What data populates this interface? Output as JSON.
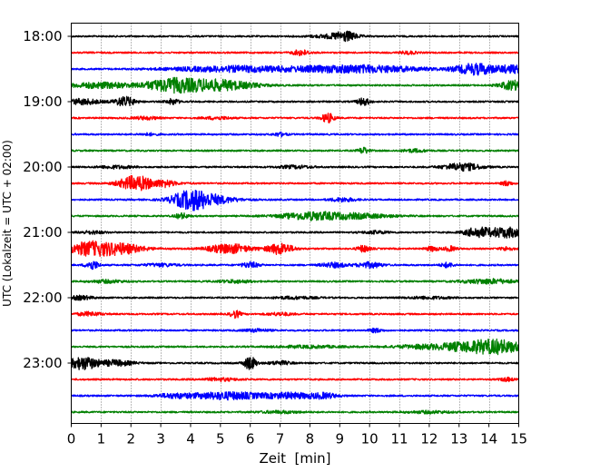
{
  "chart_data": {
    "type": "line",
    "title": "",
    "xlabel": "Zeit  [min]",
    "ylabel": "UTC (Lokalzeit = UTC + 02:00)",
    "xlim": [
      0,
      15
    ],
    "x_ticks": [
      0,
      1,
      2,
      3,
      4,
      5,
      6,
      7,
      8,
      9,
      10,
      11,
      12,
      13,
      14,
      15
    ],
    "y_tick_labels": [
      "18:00",
      "19:00",
      "20:00",
      "21:00",
      "22:00",
      "23:00"
    ],
    "trace_interval_minutes": 15,
    "start_time": "18:00",
    "grid": "vertical dotted at each minute",
    "legend": "none",
    "colors": [
      "#000000",
      "#ff0000",
      "#0000ff",
      "#008000"
    ],
    "series": [
      {
        "start": "18:00",
        "bursts": [
          {
            "t": 9.2,
            "amp": 4,
            "w": 0.25
          },
          {
            "t": 8.8,
            "amp": 2,
            "w": 0.5
          }
        ]
      },
      {
        "start": "18:15",
        "bursts": [
          {
            "t": 7.7,
            "amp": 3,
            "w": 0.2
          },
          {
            "t": 11.3,
            "amp": 1.5,
            "w": 0.2
          }
        ]
      },
      {
        "start": "18:30",
        "bursts": [
          {
            "t": 13.6,
            "amp": 6,
            "w": 0.5
          },
          {
            "t": 9.6,
            "amp": 4,
            "w": 1.5
          },
          {
            "t": 5.5,
            "amp": 3,
            "w": 1.5
          },
          {
            "t": 14.8,
            "amp": 4,
            "w": 0.3
          }
        ]
      },
      {
        "start": "18:45",
        "bursts": [
          {
            "t": 3.3,
            "amp": 6,
            "w": 0.6
          },
          {
            "t": 4.8,
            "amp": 6,
            "w": 0.9
          },
          {
            "t": 14.8,
            "amp": 5,
            "w": 0.3
          },
          {
            "t": 1.0,
            "amp": 3,
            "w": 0.8
          }
        ]
      },
      {
        "start": "19:00",
        "bursts": [
          {
            "t": 1.8,
            "amp": 5,
            "w": 0.25
          },
          {
            "t": 0.4,
            "amp": 3,
            "w": 0.4
          },
          {
            "t": 9.8,
            "amp": 4,
            "w": 0.15
          },
          {
            "t": 3.4,
            "amp": 3,
            "w": 0.15
          }
        ]
      },
      {
        "start": "19:15",
        "bursts": [
          {
            "t": 8.6,
            "amp": 5,
            "w": 0.15
          },
          {
            "t": 2.5,
            "amp": 1.5,
            "w": 0.3
          },
          {
            "t": 4.9,
            "amp": 1.5,
            "w": 0.3
          }
        ]
      },
      {
        "start": "19:30",
        "bursts": [
          {
            "t": 7.0,
            "amp": 2,
            "w": 0.15
          },
          {
            "t": 2.6,
            "amp": 1.2,
            "w": 0.2
          }
        ]
      },
      {
        "start": "19:45",
        "bursts": [
          {
            "t": 9.8,
            "amp": 3.5,
            "w": 0.12
          },
          {
            "t": 11.5,
            "amp": 1.5,
            "w": 0.3
          }
        ]
      },
      {
        "start": "20:00",
        "bursts": [
          {
            "t": 13.1,
            "amp": 4,
            "w": 0.45
          },
          {
            "t": 7.5,
            "amp": 1.5,
            "w": 0.4
          },
          {
            "t": 1.5,
            "amp": 1.5,
            "w": 0.4
          }
        ]
      },
      {
        "start": "20:15",
        "bursts": [
          {
            "t": 2.1,
            "amp": 6,
            "w": 0.35
          },
          {
            "t": 2.6,
            "amp": 3,
            "w": 0.6
          },
          {
            "t": 14.6,
            "amp": 2.5,
            "w": 0.12
          },
          {
            "t": 3.2,
            "amp": 2,
            "w": 0.15
          }
        ]
      },
      {
        "start": "20:30",
        "bursts": [
          {
            "t": 4.0,
            "amp": 9,
            "w": 0.45
          },
          {
            "t": 4.7,
            "amp": 4,
            "w": 0.6
          },
          {
            "t": 9.1,
            "amp": 2,
            "w": 0.3
          }
        ]
      },
      {
        "start": "20:45",
        "bursts": [
          {
            "t": 8.0,
            "amp": 4,
            "w": 0.7
          },
          {
            "t": 9.6,
            "amp": 2.5,
            "w": 0.8
          },
          {
            "t": 3.7,
            "amp": 3,
            "w": 0.15
          }
        ]
      },
      {
        "start": "21:00",
        "bursts": [
          {
            "t": 13.6,
            "amp": 5,
            "w": 0.3
          },
          {
            "t": 14.3,
            "amp": 4,
            "w": 0.3
          },
          {
            "t": 14.8,
            "amp": 4,
            "w": 0.25
          },
          {
            "t": 10.2,
            "amp": 1.5,
            "w": 0.3
          },
          {
            "t": 0.7,
            "amp": 1.5,
            "w": 0.3
          }
        ]
      },
      {
        "start": "21:15",
        "bursts": [
          {
            "t": 0.6,
            "amp": 7,
            "w": 0.55
          },
          {
            "t": 1.7,
            "amp": 5,
            "w": 0.55
          },
          {
            "t": 5.3,
            "amp": 5,
            "w": 0.5
          },
          {
            "t": 7.0,
            "amp": 6,
            "w": 0.3
          },
          {
            "t": 9.8,
            "amp": 3.5,
            "w": 0.15
          },
          {
            "t": 12.1,
            "amp": 2.5,
            "w": 0.15
          },
          {
            "t": 12.7,
            "amp": 2.5,
            "w": 0.15
          },
          {
            "t": 14.6,
            "amp": 2,
            "w": 0.15
          }
        ]
      },
      {
        "start": "21:30",
        "bursts": [
          {
            "t": 0.7,
            "amp": 5,
            "w": 0.15
          },
          {
            "t": 6.0,
            "amp": 3,
            "w": 0.2
          },
          {
            "t": 8.8,
            "amp": 2.5,
            "w": 0.3
          },
          {
            "t": 10.0,
            "amp": 3,
            "w": 0.3
          },
          {
            "t": 12.6,
            "amp": 2.5,
            "w": 0.15
          },
          {
            "t": 3.0,
            "amp": 1.5,
            "w": 0.4
          }
        ]
      },
      {
        "start": "21:45",
        "bursts": [
          {
            "t": 14.0,
            "amp": 2.5,
            "w": 0.6
          },
          {
            "t": 1.2,
            "amp": 1.5,
            "w": 0.4
          },
          {
            "t": 5.5,
            "amp": 1.5,
            "w": 0.4
          }
        ]
      },
      {
        "start": "22:00",
        "bursts": [
          {
            "t": 0.3,
            "amp": 2,
            "w": 0.3
          },
          {
            "t": 7.5,
            "amp": 1.2,
            "w": 0.5
          },
          {
            "t": 12.0,
            "amp": 1.2,
            "w": 0.5
          }
        ]
      },
      {
        "start": "22:15",
        "bursts": [
          {
            "t": 5.5,
            "amp": 4,
            "w": 0.12
          },
          {
            "t": 0.6,
            "amp": 2,
            "w": 0.3
          },
          {
            "t": 7.0,
            "amp": 1.5,
            "w": 0.3
          }
        ]
      },
      {
        "start": "22:30",
        "bursts": [
          {
            "t": 10.2,
            "amp": 2,
            "w": 0.15
          },
          {
            "t": 6.2,
            "amp": 1.5,
            "w": 0.3
          }
        ]
      },
      {
        "start": "22:45",
        "bursts": [
          {
            "t": 14.3,
            "amp": 7,
            "w": 0.6
          },
          {
            "t": 13.2,
            "amp": 4,
            "w": 0.6
          },
          {
            "t": 11.8,
            "amp": 2,
            "w": 0.7
          },
          {
            "t": 8.0,
            "amp": 1.2,
            "w": 0.8
          }
        ]
      },
      {
        "start": "23:00",
        "bursts": [
          {
            "t": 0.4,
            "amp": 7,
            "w": 0.35
          },
          {
            "t": 6.0,
            "amp": 7,
            "w": 0.15
          },
          {
            "t": 1.5,
            "amp": 3,
            "w": 0.4
          },
          {
            "t": 7.0,
            "amp": 2,
            "w": 0.25
          }
        ]
      },
      {
        "start": "23:15",
        "bursts": [
          {
            "t": 14.6,
            "amp": 2,
            "w": 0.15
          },
          {
            "t": 5.0,
            "amp": 1.5,
            "w": 0.4
          }
        ]
      },
      {
        "start": "23:30",
        "bursts": [
          {
            "t": 5.2,
            "amp": 4,
            "w": 0.9
          },
          {
            "t": 7.4,
            "amp": 3,
            "w": 0.6
          },
          {
            "t": 8.5,
            "amp": 2.5,
            "w": 0.3
          },
          {
            "t": 3.4,
            "amp": 2,
            "w": 0.4
          }
        ]
      },
      {
        "start": "23:45",
        "bursts": [
          {
            "t": 7.0,
            "amp": 1.2,
            "w": 0.5
          },
          {
            "t": 12.0,
            "amp": 1.2,
            "w": 0.5
          }
        ]
      }
    ]
  }
}
